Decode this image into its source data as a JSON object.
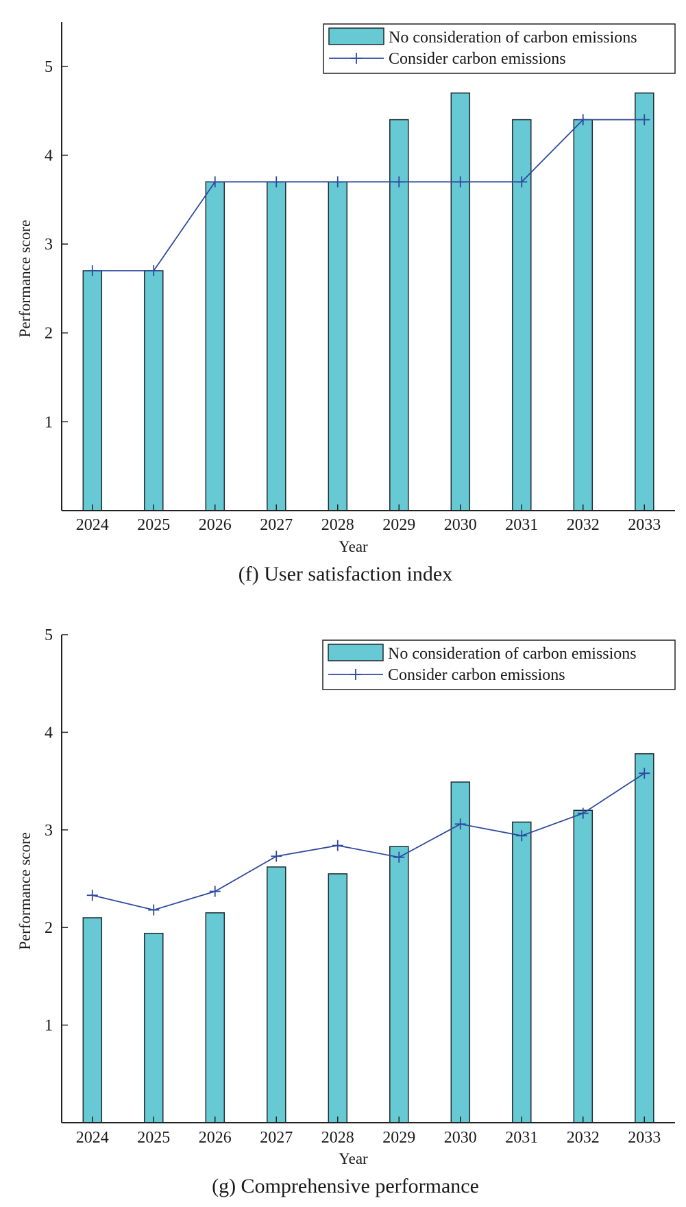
{
  "colors": {
    "bar_fill": "#66c9d4",
    "bar_stroke": "#1f2a30",
    "line": "#2e4a9e",
    "axis": "#222222"
  },
  "chart_data": [
    {
      "id": "f",
      "type": "bar",
      "caption": "(f) User satisfaction index",
      "xlabel": "Year",
      "ylabel": "Performance score",
      "categories": [
        "2024",
        "2025",
        "2026",
        "2027",
        "2028",
        "2029",
        "2030",
        "2031",
        "2032",
        "2033"
      ],
      "ylim": [
        0,
        5.5
      ],
      "yticks": [
        1,
        2,
        3,
        4,
        5
      ],
      "legend_position": "top-right",
      "series": [
        {
          "name": "No consideration of carbon emissions",
          "kind": "bar",
          "values": [
            2.7,
            2.7,
            3.7,
            3.7,
            3.7,
            4.4,
            4.7,
            4.4,
            4.4,
            4.7
          ]
        },
        {
          "name": "Consider carbon emissions",
          "kind": "line",
          "marker": "+",
          "values": [
            2.7,
            2.7,
            3.7,
            3.7,
            3.7,
            3.7,
            3.7,
            3.7,
            4.4,
            4.4
          ]
        }
      ]
    },
    {
      "id": "g",
      "type": "bar",
      "caption": "(g) Comprehensive performance",
      "xlabel": "Year",
      "ylabel": "Performance score",
      "categories": [
        "2024",
        "2025",
        "2026",
        "2027",
        "2028",
        "2029",
        "2030",
        "2031",
        "2032",
        "2033"
      ],
      "ylim": [
        0,
        5
      ],
      "yticks": [
        1,
        2,
        3,
        4,
        5
      ],
      "legend_position": "top-right",
      "series": [
        {
          "name": "No consideration of carbon emissions",
          "kind": "bar",
          "values": [
            2.1,
            1.94,
            2.15,
            2.62,
            2.55,
            2.83,
            3.49,
            3.08,
            3.2,
            3.78
          ]
        },
        {
          "name": "Consider carbon emissions",
          "kind": "line",
          "marker": "+",
          "values": [
            2.33,
            2.18,
            2.37,
            2.73,
            2.84,
            2.72,
            3.06,
            2.94,
            3.17,
            3.58
          ]
        }
      ]
    }
  ]
}
